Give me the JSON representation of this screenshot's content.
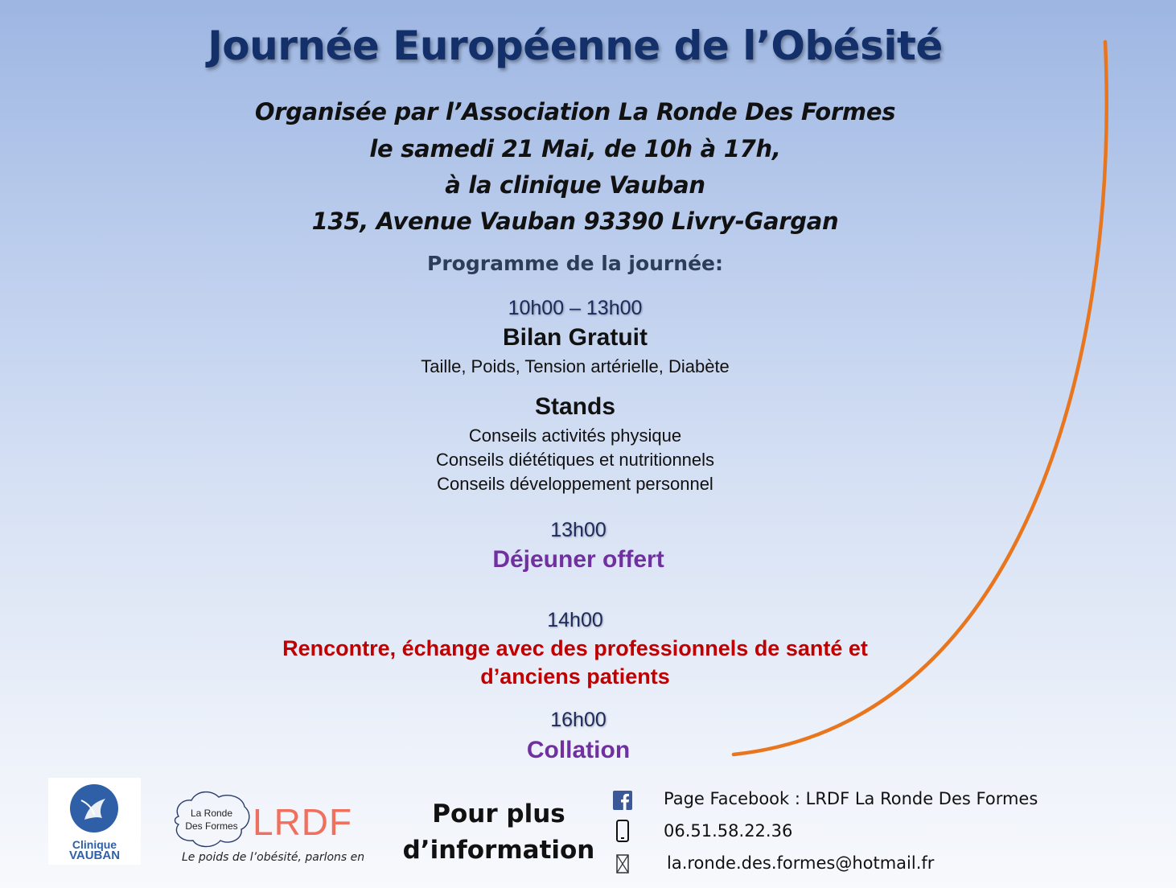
{
  "title": "Journée Européenne de l’Obésité",
  "subtitle_lines": [
    "Organisée par l’Association La Ronde Des Formes",
    "le samedi 21 Mai, de 10h à 17h,",
    "à la clinique Vauban",
    "135, Avenue Vauban 93390 Livry-Gargan"
  ],
  "programme_heading": "Programme de la journée:",
  "sessions": [
    {
      "time": "10h00 – 13h00",
      "title": "Bilan Gratuit",
      "detail": "Taille, Poids, Tension artérielle, Diabète"
    },
    {
      "title": "Stands",
      "lines": [
        "Conseils activités physique",
        "Conseils diététiques et nutritionnels",
        "Conseils développement personnel"
      ]
    },
    {
      "time": "13h00",
      "title": "Déjeuner offert"
    },
    {
      "time": "14h00",
      "title_lines": [
        "Rencontre, échange avec des professionnels de santé et",
        "d’anciens patients"
      ]
    },
    {
      "time": "16h00",
      "title": "Collation"
    }
  ],
  "logos": {
    "clinique": {
      "line1": "Clinique",
      "line2": "VAUBAN",
      "icon": "clinique-vauban-emblem"
    },
    "lrdf": {
      "blob_line1": "La Ronde",
      "blob_line2": "Des Formes",
      "acronym": "LRDF",
      "slogan": "Le poids de l’obésité, parlons en"
    }
  },
  "info_heading_lines": [
    "Pour plus",
    "d’information"
  ],
  "contacts": [
    {
      "icon": "facebook-icon",
      "text": "Page Facebook : LRDF La Ronde Des Formes"
    },
    {
      "icon": "phone-icon",
      "text": "06.51.58.22.36"
    },
    {
      "icon": "envelope-icon",
      "text": "la.ronde.des.formes@hotmail.fr"
    }
  ],
  "colors": {
    "title": "#14306a",
    "arc": "#e8761e",
    "purple": "#7030a0",
    "red": "#c00000",
    "facebook": "#3b5998",
    "lrdf": "#f07060",
    "vauban": "#2f5fa7"
  }
}
